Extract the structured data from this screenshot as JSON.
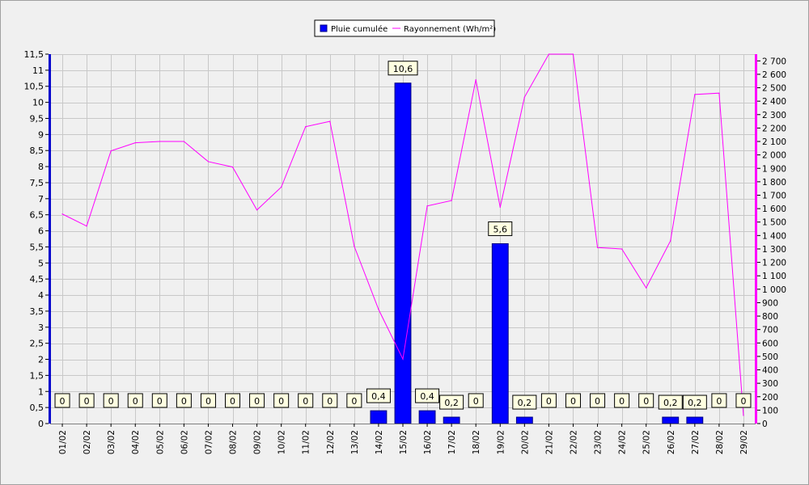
{
  "chart_data": {
    "type": "bar",
    "categories": [
      "01/02",
      "02/02",
      "03/02",
      "04/02",
      "05/02",
      "06/02",
      "07/02",
      "08/02",
      "09/02",
      "10/02",
      "11/02",
      "12/02",
      "13/02",
      "14/02",
      "15/02",
      "16/02",
      "17/02",
      "18/02",
      "19/02",
      "20/02",
      "21/02",
      "22/02",
      "23/02",
      "24/02",
      "25/02",
      "26/02",
      "27/02",
      "28/02",
      "29/02"
    ],
    "series": [
      {
        "name": "Pluie cumulée",
        "type": "bar",
        "axis": "left",
        "color": "#0000ff",
        "values": [
          0,
          0,
          0,
          0,
          0,
          0,
          0,
          0,
          0,
          0,
          0,
          0,
          0,
          0.4,
          10.6,
          0.4,
          0.2,
          0,
          5.6,
          0.2,
          0,
          0,
          0,
          0,
          0,
          0.2,
          0.2,
          0,
          0
        ],
        "labels": [
          "0",
          "0",
          "0",
          "0",
          "0",
          "0",
          "0",
          "0",
          "0",
          "0",
          "0",
          "0",
          "0",
          "0,4",
          "10,6",
          "0,4",
          "0,2",
          "0",
          "5,6",
          "0,2",
          "0",
          "0",
          "0",
          "0",
          "0",
          "0,2",
          "0,2",
          "0",
          "0"
        ]
      },
      {
        "name": "Rayonnement (Wh/m²)",
        "type": "line",
        "axis": "right",
        "color": "#ff00ff",
        "values": [
          1560,
          1470,
          2030,
          2090,
          2100,
          2100,
          1950,
          1910,
          1590,
          1760,
          2210,
          2250,
          1320,
          850,
          480,
          1620,
          1660,
          2560,
          1610,
          2430,
          2750,
          2750,
          1310,
          1300,
          1010,
          1360,
          2450,
          2460,
          60
        ]
      }
    ],
    "y_left": {
      "min": 0,
      "max": 11.5,
      "ticks": [
        "0",
        "0,5",
        "1",
        "1,5",
        "2",
        "2,5",
        "3",
        "3,5",
        "4",
        "4,5",
        "5",
        "5,5",
        "6",
        "6,5",
        "7",
        "7,5",
        "8",
        "8,5",
        "9",
        "9,5",
        "10",
        "10,5",
        "11",
        "11,5"
      ]
    },
    "y_right": {
      "min": 0,
      "max": 2750,
      "ticks": [
        "0",
        "100",
        "200",
        "300",
        "400",
        "500",
        "600",
        "700",
        "800",
        "900",
        "1 000",
        "1 100",
        "1 200",
        "1 300",
        "1 400",
        "1 500",
        "1 600",
        "1 700",
        "1 800",
        "1 900",
        "2 000",
        "2 100",
        "2 200",
        "2 300",
        "2 400",
        "2 500",
        "2 600",
        "2 700"
      ]
    },
    "grid": true,
    "legend_position": "top-center",
    "colors": {
      "left_axis": "#0000cc",
      "right_axis": "#ff00ff",
      "grid": "#c8c8c8",
      "label_bg": "#ffffe1"
    }
  }
}
